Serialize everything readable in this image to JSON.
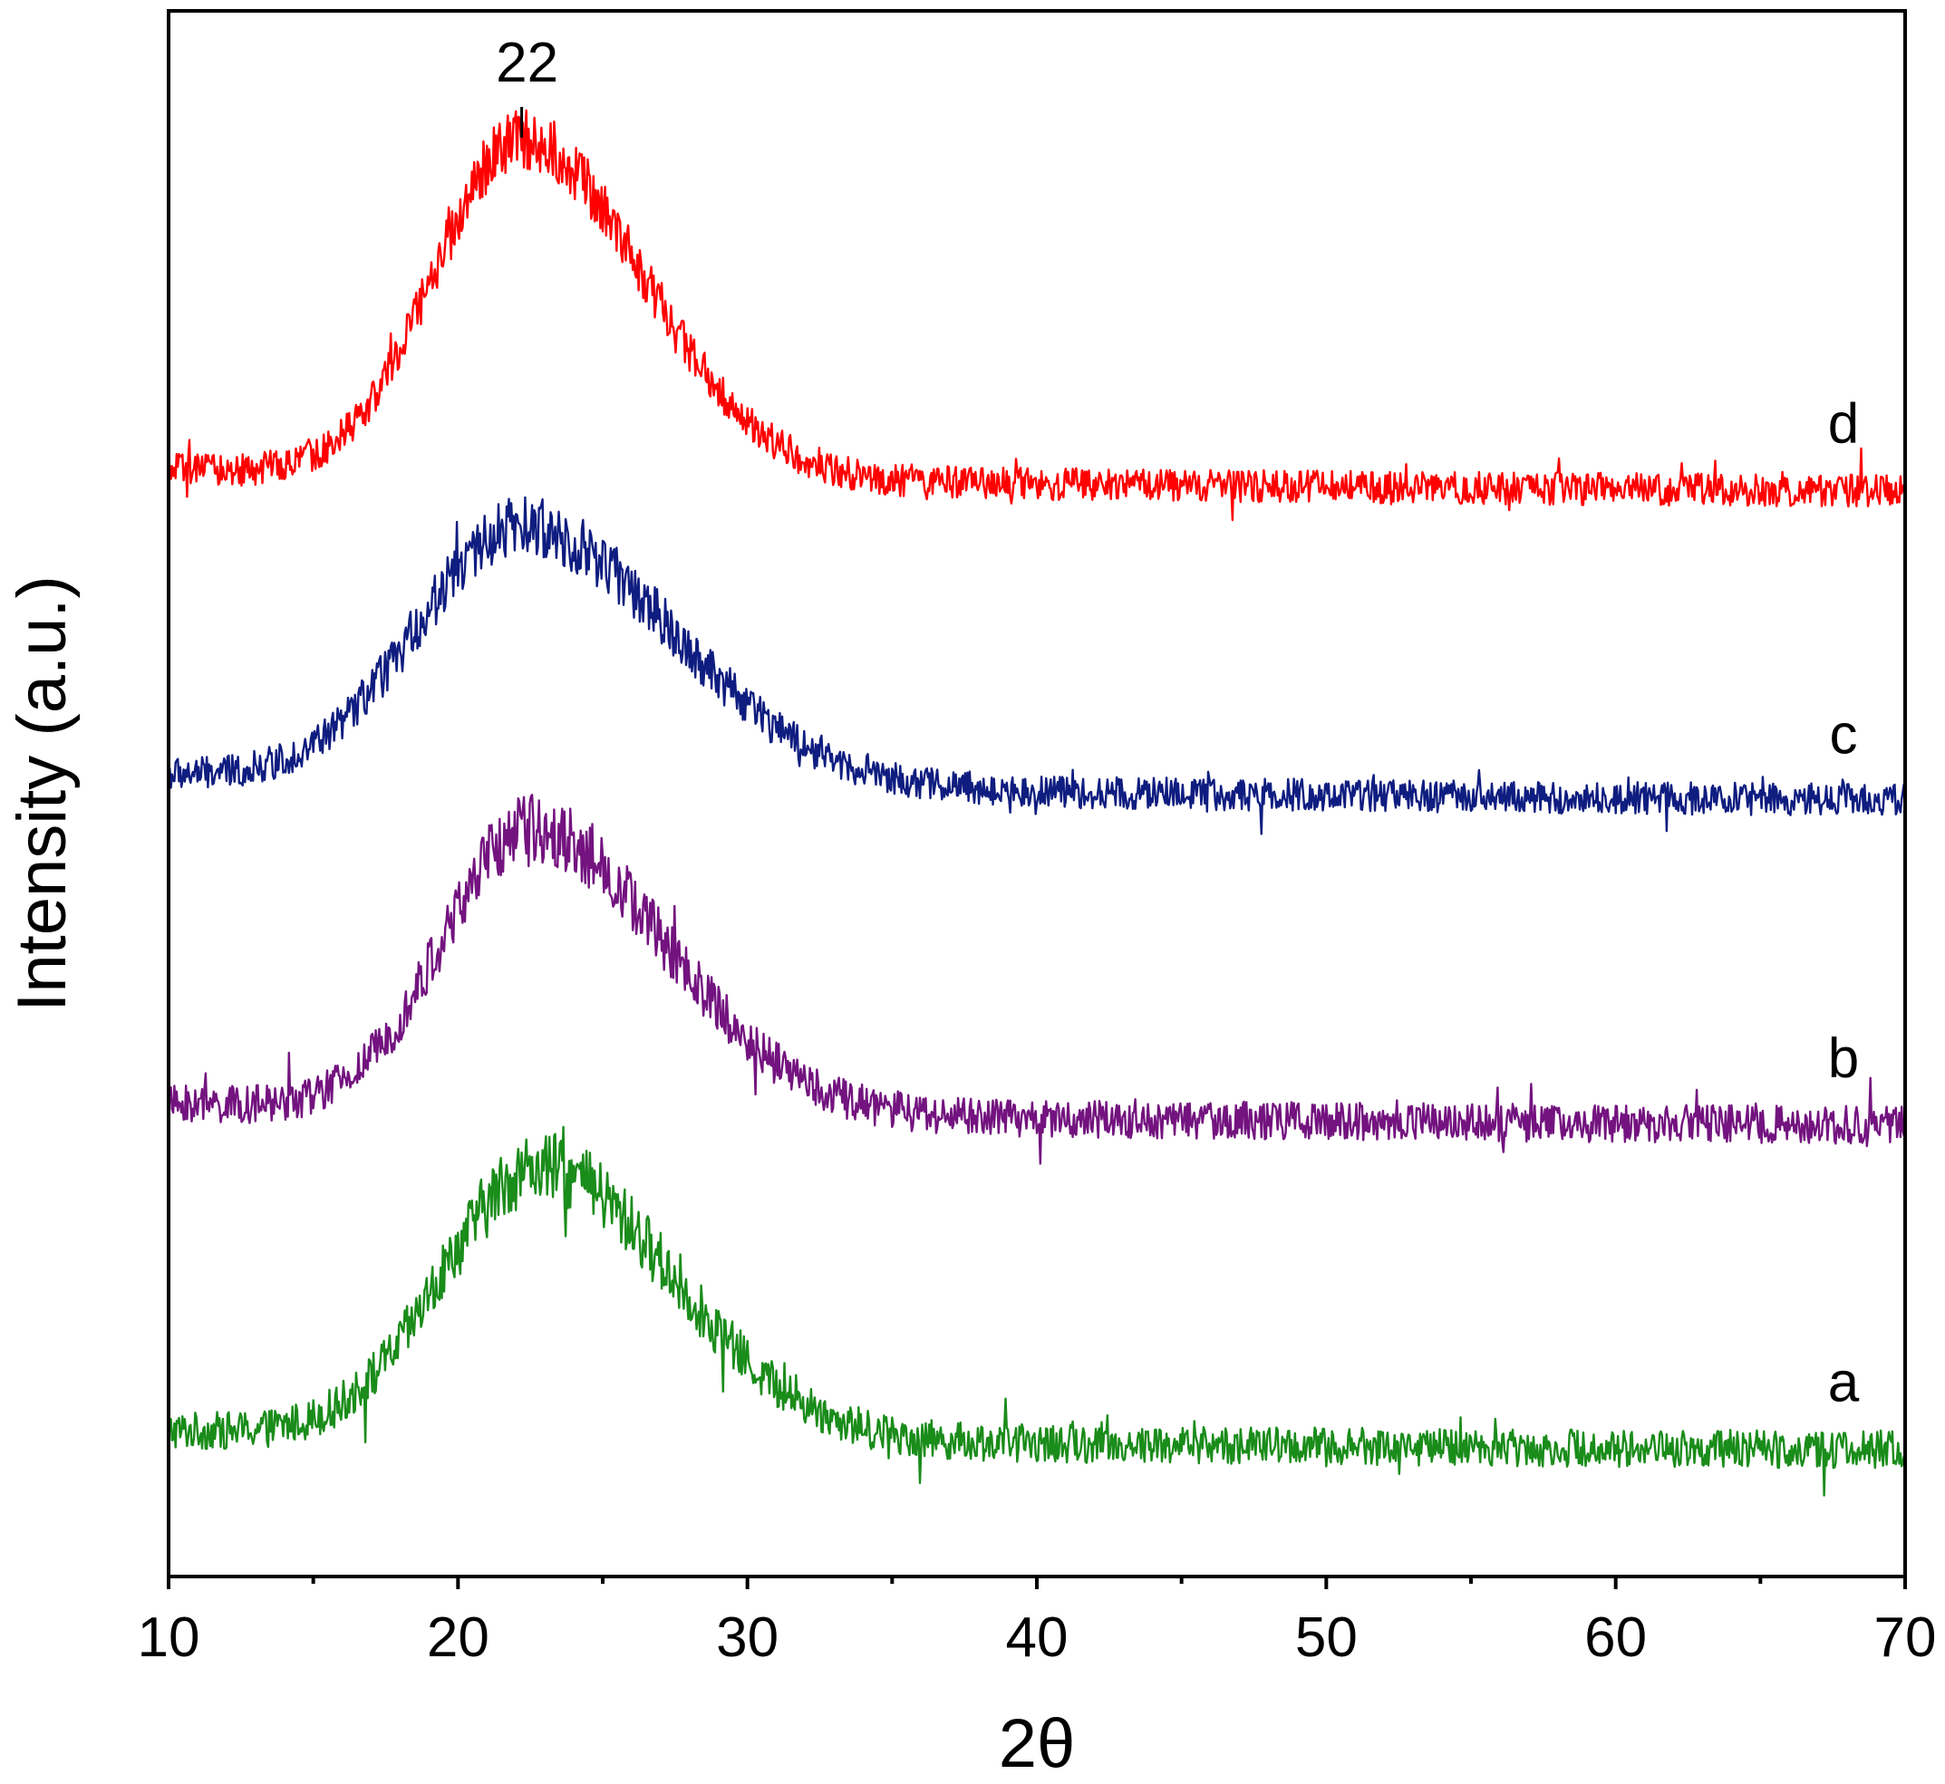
{
  "chart_data": {
    "type": "line",
    "title": "",
    "xlabel": "2θ",
    "ylabel": "Intensity (a.u.)",
    "xlim": [
      10,
      70
    ],
    "xticks": [
      10,
      20,
      30,
      40,
      50,
      60,
      70
    ],
    "xticks_minor_step": 5,
    "yticks": [],
    "ylim_data_units": "arbitrary",
    "grid": false,
    "legend": "none (series labelled at right end of curves)",
    "annotations": [
      {
        "text": "22",
        "x": 22.2
      }
    ],
    "series": [
      {
        "name": "a",
        "color": "#1a8c1a",
        "baseline": 1.0,
        "peak_x": 22.8,
        "peak_height": 1.0,
        "peak_width_left": 3.3,
        "peak_width_right": 4.6,
        "tail_level": 0.09,
        "noise": 0.07,
        "x": [
          10,
          12,
          14,
          16,
          18,
          19,
          20,
          21,
          22,
          22.8,
          24,
          25,
          26,
          28,
          30,
          32,
          35,
          40,
          45,
          50,
          55,
          60,
          65,
          70
        ],
        "y": [
          1.08,
          1.1,
          1.15,
          1.25,
          1.45,
          1.62,
          1.78,
          1.85,
          1.92,
          2.0,
          1.88,
          1.74,
          1.62,
          1.45,
          1.33,
          1.25,
          1.18,
          1.12,
          1.1,
          1.09,
          1.08,
          1.08,
          1.07,
          1.07
        ]
      },
      {
        "name": "b",
        "color": "#73137f",
        "baseline": 2.2,
        "peak_x": 22.5,
        "peak_height": 1.05,
        "peak_width_left": 3.0,
        "peak_width_right": 4.6,
        "tail_level": 0.1,
        "noise": 0.07,
        "x": [
          10,
          12,
          14,
          16,
          18,
          19,
          20,
          21,
          22,
          22.5,
          24,
          25,
          26,
          28,
          30,
          32,
          35,
          40,
          45,
          50,
          55,
          60,
          65,
          70
        ],
        "y": [
          2.3,
          2.32,
          2.36,
          2.48,
          2.72,
          2.9,
          3.05,
          3.15,
          3.22,
          3.25,
          3.1,
          2.96,
          2.84,
          2.65,
          2.54,
          2.46,
          2.4,
          2.33,
          2.31,
          2.3,
          2.3,
          2.3,
          2.3,
          2.29
        ]
      },
      {
        "name": "c",
        "color": "#0f1d80",
        "baseline": 3.4,
        "peak_x": 22.2,
        "peak_height": 0.95,
        "peak_width_left": 3.6,
        "peak_width_right": 5.2,
        "tail_level": 0.12,
        "noise": 0.06,
        "x": [
          10,
          12,
          14,
          16,
          18,
          19,
          20,
          21,
          22,
          22.2,
          24,
          25,
          26,
          28,
          30,
          32,
          35,
          40,
          45,
          50,
          55,
          60,
          65,
          70
        ],
        "y": [
          3.52,
          3.55,
          3.6,
          3.7,
          3.92,
          4.05,
          4.18,
          4.27,
          4.33,
          4.35,
          4.22,
          4.1,
          3.98,
          3.8,
          3.7,
          3.64,
          3.58,
          3.53,
          3.5,
          3.48,
          3.47,
          3.47,
          3.46,
          3.46
        ]
      },
      {
        "name": "d",
        "color": "#ff0000",
        "baseline": 4.55,
        "peak_x": 22.2,
        "peak_height": 1.25,
        "peak_width_left": 3.0,
        "peak_width_right": 4.2,
        "tail_level": 0.1,
        "noise": 0.06,
        "x": [
          10,
          12,
          14,
          16,
          18,
          19,
          20,
          21,
          22,
          22.2,
          24,
          25,
          26,
          28,
          30,
          32,
          35,
          40,
          45,
          50,
          55,
          60,
          65,
          70
        ],
        "y": [
          4.68,
          4.7,
          4.74,
          4.86,
          5.12,
          5.33,
          5.55,
          5.7,
          5.79,
          5.8,
          5.62,
          5.45,
          5.28,
          5.03,
          4.88,
          4.78,
          4.72,
          4.67,
          4.66,
          4.65,
          4.65,
          4.65,
          4.65,
          4.65
        ]
      }
    ]
  }
}
